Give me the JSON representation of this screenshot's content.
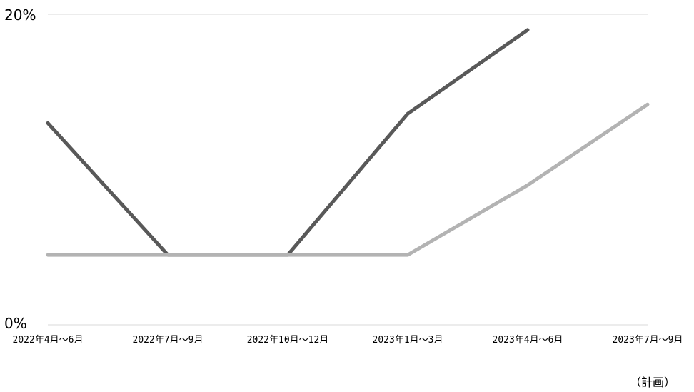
{
  "chart_data": {
    "type": "line",
    "categories": [
      "2022年4月～6月",
      "2022年7月～9月",
      "2022年10月～12月",
      "2023年1月～3月",
      "2023年4月～6月",
      "2023年7月～9月"
    ],
    "series": [
      {
        "color": "#595959",
        "values": [
          13,
          4.5,
          4.5,
          13.6,
          19,
          null
        ]
      },
      {
        "color": "#b3b3b3",
        "values": [
          4.5,
          4.5,
          4.5,
          4.5,
          9,
          14.2
        ]
      }
    ],
    "y_ticks": [
      "0%",
      "20%"
    ],
    "ylim": [
      0,
      20
    ],
    "grid": true,
    "note": "（計画）"
  }
}
